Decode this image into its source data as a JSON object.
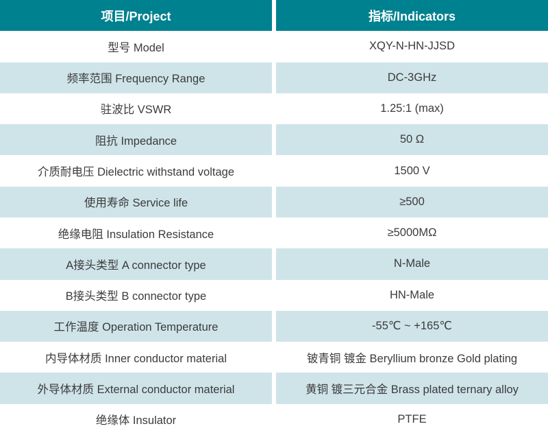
{
  "colors": {
    "header_bg": "#00818F",
    "header_text": "#FFFFFF",
    "row_bg": "#FFFFFF",
    "row_alt_bg": "#CFE4E9",
    "body_text": "#3B3B3B"
  },
  "table": {
    "columns": [
      {
        "label": "项目/Project"
      },
      {
        "label": "指标/Indicators"
      }
    ],
    "rows": [
      {
        "project": "型号 Model",
        "indicator": "XQY-N-HN-JJSD"
      },
      {
        "project": "频率范围 Frequency Range",
        "indicator": "DC-3GHz"
      },
      {
        "project": "驻波比 VSWR",
        "indicator": "1.25:1 (max)"
      },
      {
        "project": "阻抗 Impedance",
        "indicator": "50 Ω"
      },
      {
        "project": "介质耐电压 Dielectric withstand voltage",
        "indicator": "1500 V"
      },
      {
        "project": "使用寿命 Service life",
        "indicator": "≥500"
      },
      {
        "project": "绝缘电阻 Insulation Resistance",
        "indicator": "≥5000MΩ"
      },
      {
        "project": "A接头类型 A connector type",
        "indicator": "N-Male"
      },
      {
        "project": "B接头类型 B connector type",
        "indicator": "HN-Male"
      },
      {
        "project": "工作温度 Operation Temperature",
        "indicator": "-55℃ ~ +165℃"
      },
      {
        "project": "内导体材质 Inner conductor material",
        "indicator": "铍青铜 镀金 Beryllium bronze Gold plating"
      },
      {
        "project": "外导体材质 External conductor material",
        "indicator": "黄铜 镀三元合金 Brass plated ternary alloy"
      },
      {
        "project": "绝缘体 Insulator",
        "indicator": "PTFE"
      }
    ]
  }
}
